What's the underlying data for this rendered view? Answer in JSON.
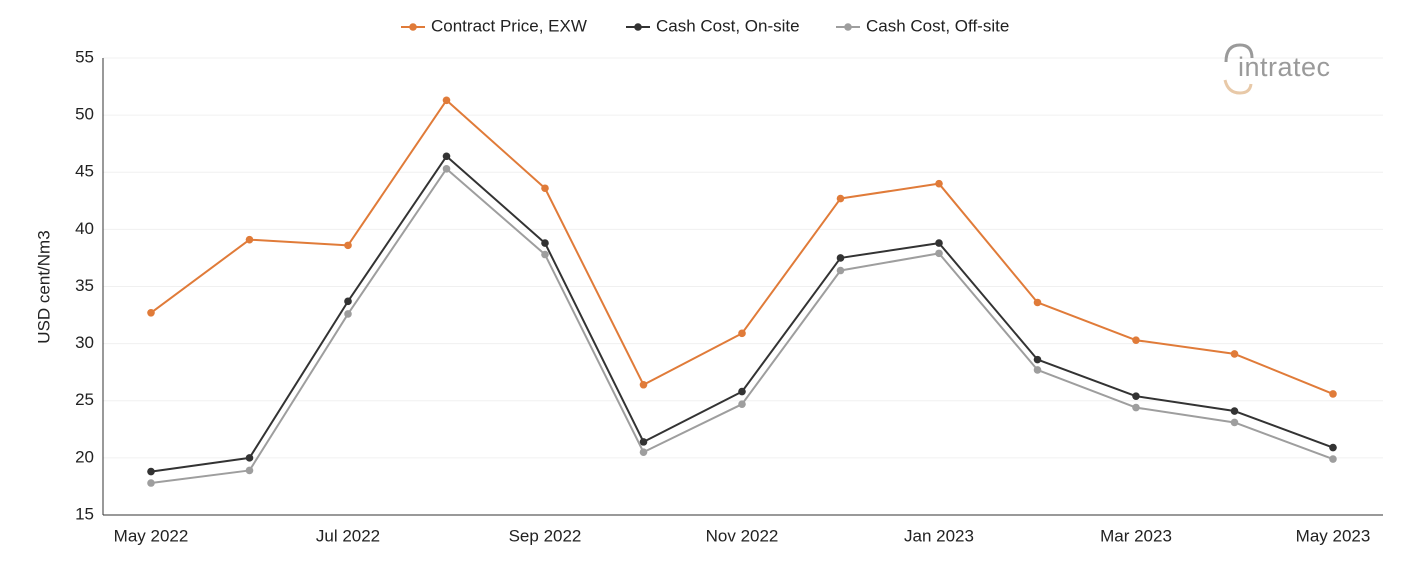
{
  "chart_data": {
    "type": "line",
    "title": "",
    "xlabel": "",
    "ylabel": "USD cent/Nm3",
    "ylim": [
      15,
      55
    ],
    "yticks": [
      15,
      20,
      25,
      30,
      35,
      40,
      45,
      50,
      55
    ],
    "x": [
      "May 2022",
      "Jun 2022",
      "Jul 2022",
      "Aug 2022",
      "Sep 2022",
      "Oct 2022",
      "Nov 2022",
      "Dec 2022",
      "Jan 2023",
      "Feb 2023",
      "Mar 2023",
      "Apr 2023",
      "May 2023"
    ],
    "xtick_labels": [
      "May 2022",
      "Jul 2022",
      "Sep 2022",
      "Nov 2022",
      "Jan 2023",
      "Mar 2023",
      "May 2023"
    ],
    "legend_position": "top-center",
    "grid": "horizontal, light",
    "series": [
      {
        "name": "Contract Price, EXW",
        "color": "#e07b39",
        "values": [
          32.7,
          39.1,
          38.6,
          51.3,
          43.6,
          26.4,
          30.9,
          42.7,
          44.0,
          33.6,
          30.3,
          29.1,
          25.6
        ]
      },
      {
        "name": "Cash Cost, On-site",
        "color": "#333333",
        "values": [
          18.8,
          20.0,
          33.7,
          46.4,
          38.8,
          21.4,
          25.8,
          37.5,
          38.8,
          28.6,
          25.4,
          24.1,
          20.9
        ]
      },
      {
        "name": "Cash Cost, Off-site",
        "color": "#9e9e9e",
        "values": [
          17.8,
          18.9,
          32.6,
          45.3,
          37.8,
          20.5,
          24.7,
          36.4,
          37.9,
          27.7,
          24.4,
          23.1,
          19.9
        ]
      }
    ]
  },
  "logo": {
    "text": "intratec",
    "color": "#9a9a9a",
    "accent_color": "#e8c9a8"
  }
}
